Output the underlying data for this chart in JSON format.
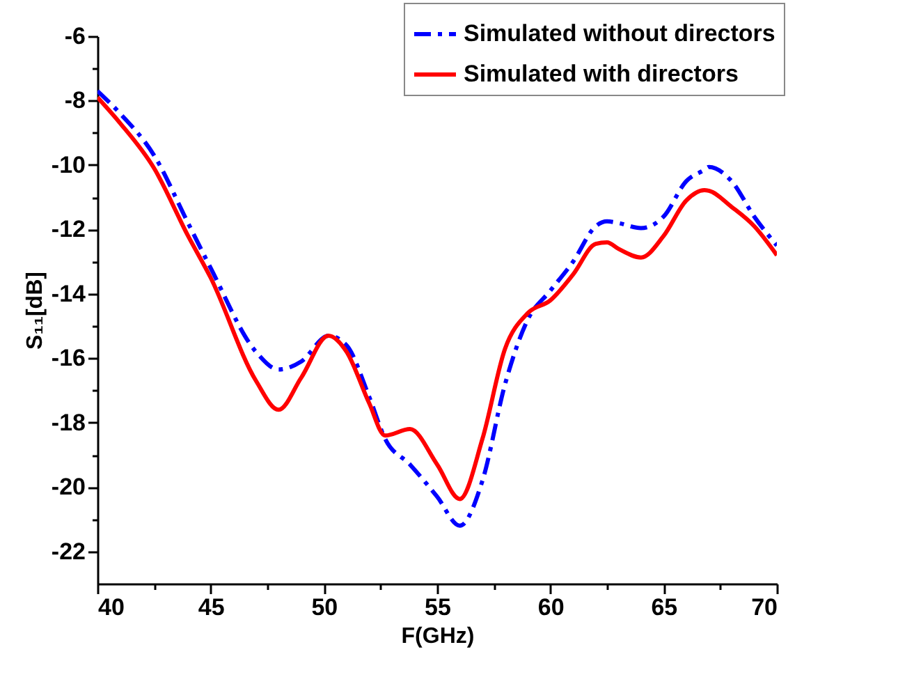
{
  "chart_data": {
    "type": "line",
    "xlabel": "F(GHz)",
    "ylabel": "S₁₁[dB]",
    "xlim": [
      40,
      70
    ],
    "ylim": [
      -23,
      -6
    ],
    "xticks": [
      40,
      {
        "value": 42.5,
        "label": null
      },
      45,
      {
        "value": 47.5,
        "label": null
      },
      50,
      {
        "value": 52.5,
        "label": null
      },
      55,
      {
        "value": 57.5,
        "label": null
      },
      60,
      {
        "value": 62.5,
        "label": null
      },
      65,
      {
        "value": 67.5,
        "label": null
      },
      70
    ],
    "yticks": [
      -22,
      {
        "value": -21,
        "label": null
      },
      -20,
      {
        "value": -19,
        "label": null
      },
      -18,
      {
        "value": -17,
        "label": null
      },
      -16,
      {
        "value": -15,
        "label": null
      },
      -14,
      {
        "value": -13,
        "label": null
      },
      -12,
      {
        "value": -11,
        "label": null
      },
      -10,
      {
        "value": -9,
        "label": null
      },
      -8,
      {
        "value": -7,
        "label": null
      },
      -6
    ],
    "grid": false,
    "legend": "top right",
    "marker": "none",
    "x": [
      40,
      41,
      42.5,
      44,
      45,
      47,
      48,
      49,
      50.2,
      51,
      52,
      52.7,
      53.8,
      55,
      56,
      57,
      58,
      59,
      60,
      61,
      62,
      62.5,
      63,
      64,
      65,
      66,
      66.8,
      67,
      68,
      69,
      70
    ],
    "series": [
      {
        "name": "Simulated without directors",
        "color": "#0000ff",
        "line_style": "dashdot",
        "values": [
          -7.7,
          -8.4,
          -9.7,
          -11.8,
          -13.2,
          -15.8,
          -16.35,
          -16.1,
          -15.3,
          -15.6,
          -17.2,
          -18.5,
          -19.3,
          -20.3,
          -21.2,
          -19.8,
          -16.8,
          -14.8,
          -13.9,
          -13.0,
          -11.9,
          -11.75,
          -11.8,
          -11.96,
          -11.6,
          -10.5,
          -10.15,
          -10.06,
          -10.5,
          -11.6,
          -12.5
        ]
      },
      {
        "name": "Simulated with directors",
        "color": "#ff0000",
        "line_style": "solid",
        "values": [
          -7.9,
          -8.7,
          -10.1,
          -12.2,
          -13.5,
          -16.7,
          -17.6,
          -16.6,
          -15.3,
          -15.8,
          -17.4,
          -18.4,
          -18.2,
          -19.3,
          -20.37,
          -18.5,
          -15.7,
          -14.6,
          -14.2,
          -13.4,
          -12.45,
          -12.4,
          -12.6,
          -12.87,
          -12.2,
          -11.1,
          -10.78,
          -10.8,
          -11.3,
          -11.9,
          -12.8
        ]
      }
    ]
  }
}
